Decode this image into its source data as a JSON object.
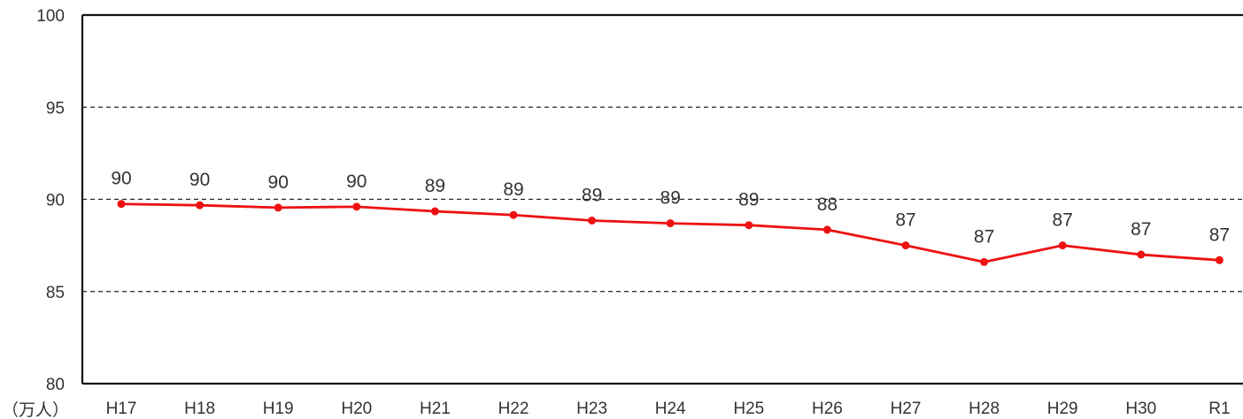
{
  "chart_data": {
    "type": "line",
    "unit_label": "（万人）",
    "categories": [
      "H17",
      "H18",
      "H19",
      "H20",
      "H21",
      "H22",
      "H23",
      "H24",
      "H25",
      "H26",
      "H27",
      "H28",
      "H29",
      "H30",
      "R1"
    ],
    "series": [
      {
        "values": [
          89.75,
          89.68,
          89.55,
          89.6,
          89.35,
          89.15,
          88.85,
          88.7,
          88.6,
          88.35,
          87.5,
          86.6,
          87.5,
          87.0,
          86.7
        ],
        "data_labels": [
          "90",
          "90",
          "90",
          "90",
          "89",
          "89",
          "89",
          "89",
          "89",
          "88",
          "87",
          "87",
          "87",
          "87",
          "87"
        ]
      }
    ],
    "y_ticks": [
      "100",
      "95",
      "90",
      "85",
      "80"
    ],
    "ylim": [
      80,
      100
    ],
    "grid": "horizontal dashed",
    "colors": {
      "line": "#ee1111",
      "grid": "#222222",
      "axis": "#111111"
    }
  }
}
